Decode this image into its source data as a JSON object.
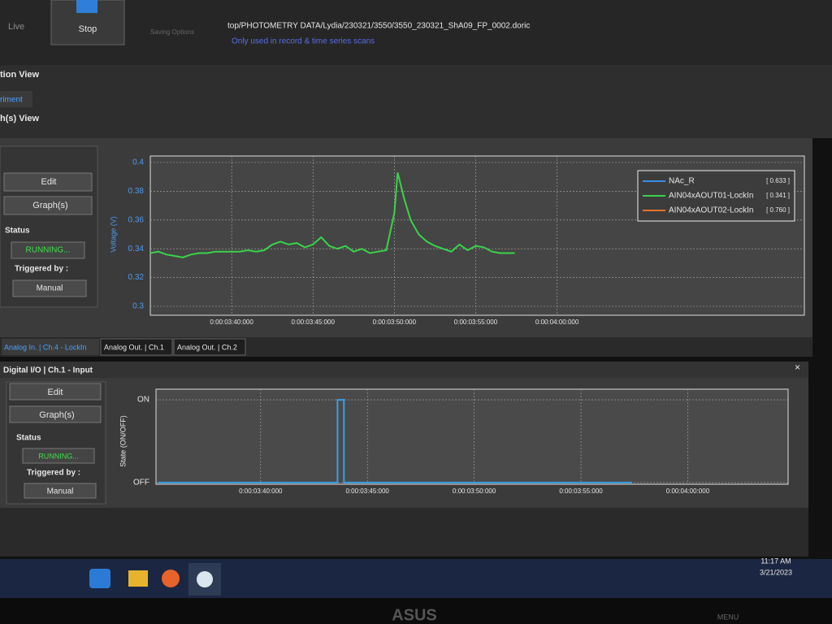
{
  "toolbar": {
    "live": "Live",
    "stop": "Stop",
    "saving": "Saving Options",
    "path": "top/PHOTOMETRY DATA/Lydia/230321/3550/3550_230321_ShA09_FP_0002.doric",
    "note": "Only used in record & time series scans"
  },
  "headers": {
    "view": "tion View",
    "tab": "riment",
    "graph_view": "h(s) View"
  },
  "panels": [
    {
      "edit": "Edit",
      "graphs": "Graph(s)",
      "status": "Status",
      "state": "RUNNING...",
      "triggered": "Triggered by :",
      "trigger": "Manual"
    },
    {
      "title": "Digital I/O | Ch.1 - Input",
      "edit": "Edit",
      "graphs": "Graph(s)",
      "status": "Status",
      "state": "RUNNING...",
      "triggered": "Triggered by :",
      "trigger": "Manual"
    }
  ],
  "tabs": [
    "Analog In. | Ch.4 - LockIn",
    "Analog Out. | Ch.1",
    "Analog Out. | Ch.2"
  ],
  "taskbar": {
    "time": "11:17 AM",
    "date": "3/21/2023"
  },
  "monitor": {
    "brand": "ASUS",
    "menu": "MENU"
  },
  "chart_data": [
    {
      "type": "line",
      "y_label": "Voltage (V)",
      "x": [
        215,
        215.5,
        216,
        216.5,
        217,
        217.5,
        218,
        218.5,
        219,
        219.5,
        220,
        220.5,
        221,
        221.5,
        222,
        222.5,
        223,
        223.5,
        224,
        224.5,
        225,
        225.5,
        226,
        226.5,
        227,
        227.5,
        228,
        228.5,
        229,
        229.5,
        230,
        230.2,
        230.6,
        231,
        231.5,
        232,
        232.5,
        233,
        233.5,
        234,
        234.5,
        235,
        235.5,
        236,
        236.5,
        237,
        237.4
      ],
      "series": [
        {
          "name": "NAc_R",
          "color": "#3a8ee6",
          "reading": "[ 0.633 ]",
          "values": [
            null,
            null,
            null,
            null,
            null,
            null,
            null,
            null,
            null,
            null,
            null,
            null,
            null,
            null,
            null,
            null,
            null,
            null,
            null,
            null,
            null,
            null,
            null,
            null,
            null,
            null,
            null,
            null,
            null,
            null,
            null,
            null,
            null,
            null,
            null,
            null,
            null,
            null,
            null,
            null,
            null,
            null,
            null,
            null,
            null,
            null,
            null
          ]
        },
        {
          "name": "AIN04xAOUT01-LockIn",
          "color": "#39d34a",
          "reading": "[ 0.341 ]",
          "values": [
            0.337,
            0.338,
            0.336,
            0.335,
            0.334,
            0.336,
            0.337,
            0.337,
            0.338,
            0.338,
            0.338,
            0.338,
            0.339,
            0.338,
            0.339,
            0.343,
            0.345,
            0.343,
            0.344,
            0.341,
            0.343,
            0.348,
            0.342,
            0.34,
            0.342,
            0.338,
            0.34,
            0.337,
            0.338,
            0.339,
            0.365,
            0.393,
            0.375,
            0.36,
            0.35,
            0.345,
            0.342,
            0.34,
            0.338,
            0.343,
            0.339,
            0.342,
            0.341,
            0.338,
            0.337,
            0.337,
            0.337
          ]
        },
        {
          "name": "AIN04xAOUT02-LockIn",
          "color": "#e8742c",
          "reading": "[ 0.760 ]",
          "values": [
            null,
            null,
            null,
            null,
            null,
            null,
            null,
            null,
            null,
            null,
            null,
            null,
            null,
            null,
            null,
            null,
            null,
            null,
            null,
            null,
            null,
            null,
            null,
            null,
            null,
            null,
            null,
            null,
            null,
            null,
            null,
            null,
            null,
            null,
            null,
            null,
            null,
            null,
            null,
            null,
            null,
            null,
            null,
            null,
            null,
            null,
            null
          ]
        }
      ],
      "xlim": [
        215,
        255.2
      ],
      "xticks": [
        {
          "value": 220,
          "label": "0:00:03:40:000"
        },
        {
          "value": 225,
          "label": "0:00:03:45:000"
        },
        {
          "value": 230,
          "label": "0:00:03:50:000"
        },
        {
          "value": 235,
          "label": "0:00:03:55:000"
        },
        {
          "value": 240,
          "label": "0:00:04:00:000"
        }
      ],
      "ylim": [
        0.3,
        0.4
      ],
      "yticks": [
        {
          "value": 0.3,
          "label": "0.3"
        },
        {
          "value": 0.32,
          "label": "0.32"
        },
        {
          "value": 0.34,
          "label": "0.34"
        },
        {
          "value": 0.36,
          "label": "0.36"
        },
        {
          "value": 0.38,
          "label": "0.38"
        },
        {
          "value": 0.4,
          "label": "0.4"
        }
      ],
      "grid": true,
      "legend": "top-right"
    },
    {
      "type": "line",
      "y_label": "State (ON/OFF)",
      "x": [
        215.2,
        223.6,
        223.6,
        223.9,
        223.9,
        237.4
      ],
      "series": [
        {
          "color": "#3a9ee6",
          "values": [
            0,
            0,
            1,
            1,
            0,
            0
          ]
        }
      ],
      "xlim": [
        215.1,
        244.7
      ],
      "xticks": [
        {
          "value": 220,
          "label": "0:00:03:40:000"
        },
        {
          "value": 225,
          "label": "0:00:03:45:000"
        },
        {
          "value": 230,
          "label": "0:00:03:50:000"
        },
        {
          "value": 235,
          "label": "0:00:03:55:000"
        },
        {
          "value": 240,
          "label": "0:00:04:00:000"
        }
      ],
      "ylim": [
        -0.05,
        1.05
      ],
      "yticks": [
        {
          "value": 0,
          "label": "OFF"
        },
        {
          "value": 1,
          "label": "ON"
        }
      ],
      "grid": true
    }
  ]
}
